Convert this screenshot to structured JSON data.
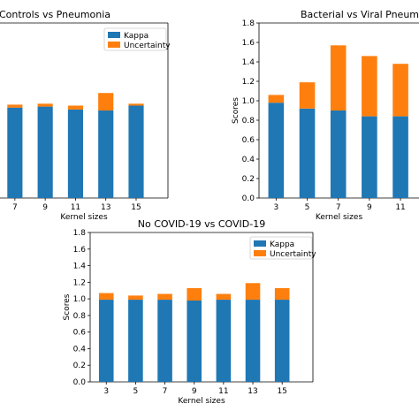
{
  "colors": {
    "kappa": "#1f77b4",
    "uncertainty": "#ff7f0e"
  },
  "chart_data": [
    {
      "type": "bar",
      "stacked": true,
      "title": "Controls vs Pneumonia",
      "xlabel": "Kernel sizes",
      "ylabel": "",
      "ylim": [
        0,
        1.8
      ],
      "categories": [
        "7",
        "9",
        "11",
        "13",
        "15"
      ],
      "series": [
        {
          "name": "Kappa",
          "values": [
            0.93,
            0.94,
            0.91,
            0.9,
            0.95
          ]
        },
        {
          "name": "Uncertainty",
          "values": [
            0.03,
            0.03,
            0.04,
            0.18,
            0.02
          ]
        }
      ],
      "legend": "top-right"
    },
    {
      "type": "bar",
      "stacked": true,
      "title": "Bacterial vs Viral Pneum",
      "xlabel": "Kernel sizes",
      "ylabel": "Scores",
      "ylim": [
        0,
        1.8
      ],
      "yticks": [
        "0.0",
        "0.2",
        "0.4",
        "0.6",
        "0.8",
        "1.0",
        "1.2",
        "1.4",
        "1.6",
        "1.8"
      ],
      "categories": [
        "3",
        "5",
        "7",
        "9",
        "11"
      ],
      "series": [
        {
          "name": "Kappa",
          "values": [
            0.98,
            0.92,
            0.9,
            0.84,
            0.84
          ]
        },
        {
          "name": "Uncertainty",
          "values": [
            0.08,
            0.27,
            0.67,
            0.62,
            0.54
          ]
        }
      ]
    },
    {
      "type": "bar",
      "stacked": true,
      "title": "No COVID-19 vs COVID-19",
      "xlabel": "Kernel sizes",
      "ylabel": "Scores",
      "ylim": [
        0,
        1.8
      ],
      "yticks": [
        "0.0",
        "0.2",
        "0.4",
        "0.6",
        "0.8",
        "1.0",
        "1.2",
        "1.4",
        "1.6",
        "1.8"
      ],
      "categories": [
        "3",
        "5",
        "7",
        "9",
        "11",
        "13",
        "15"
      ],
      "series": [
        {
          "name": "Kappa",
          "values": [
            0.99,
            0.99,
            0.99,
            0.98,
            0.99,
            0.99,
            0.99
          ]
        },
        {
          "name": "Uncertainty",
          "values": [
            0.08,
            0.05,
            0.07,
            0.15,
            0.07,
            0.2,
            0.14
          ]
        }
      ],
      "legend": "top-right"
    }
  ]
}
